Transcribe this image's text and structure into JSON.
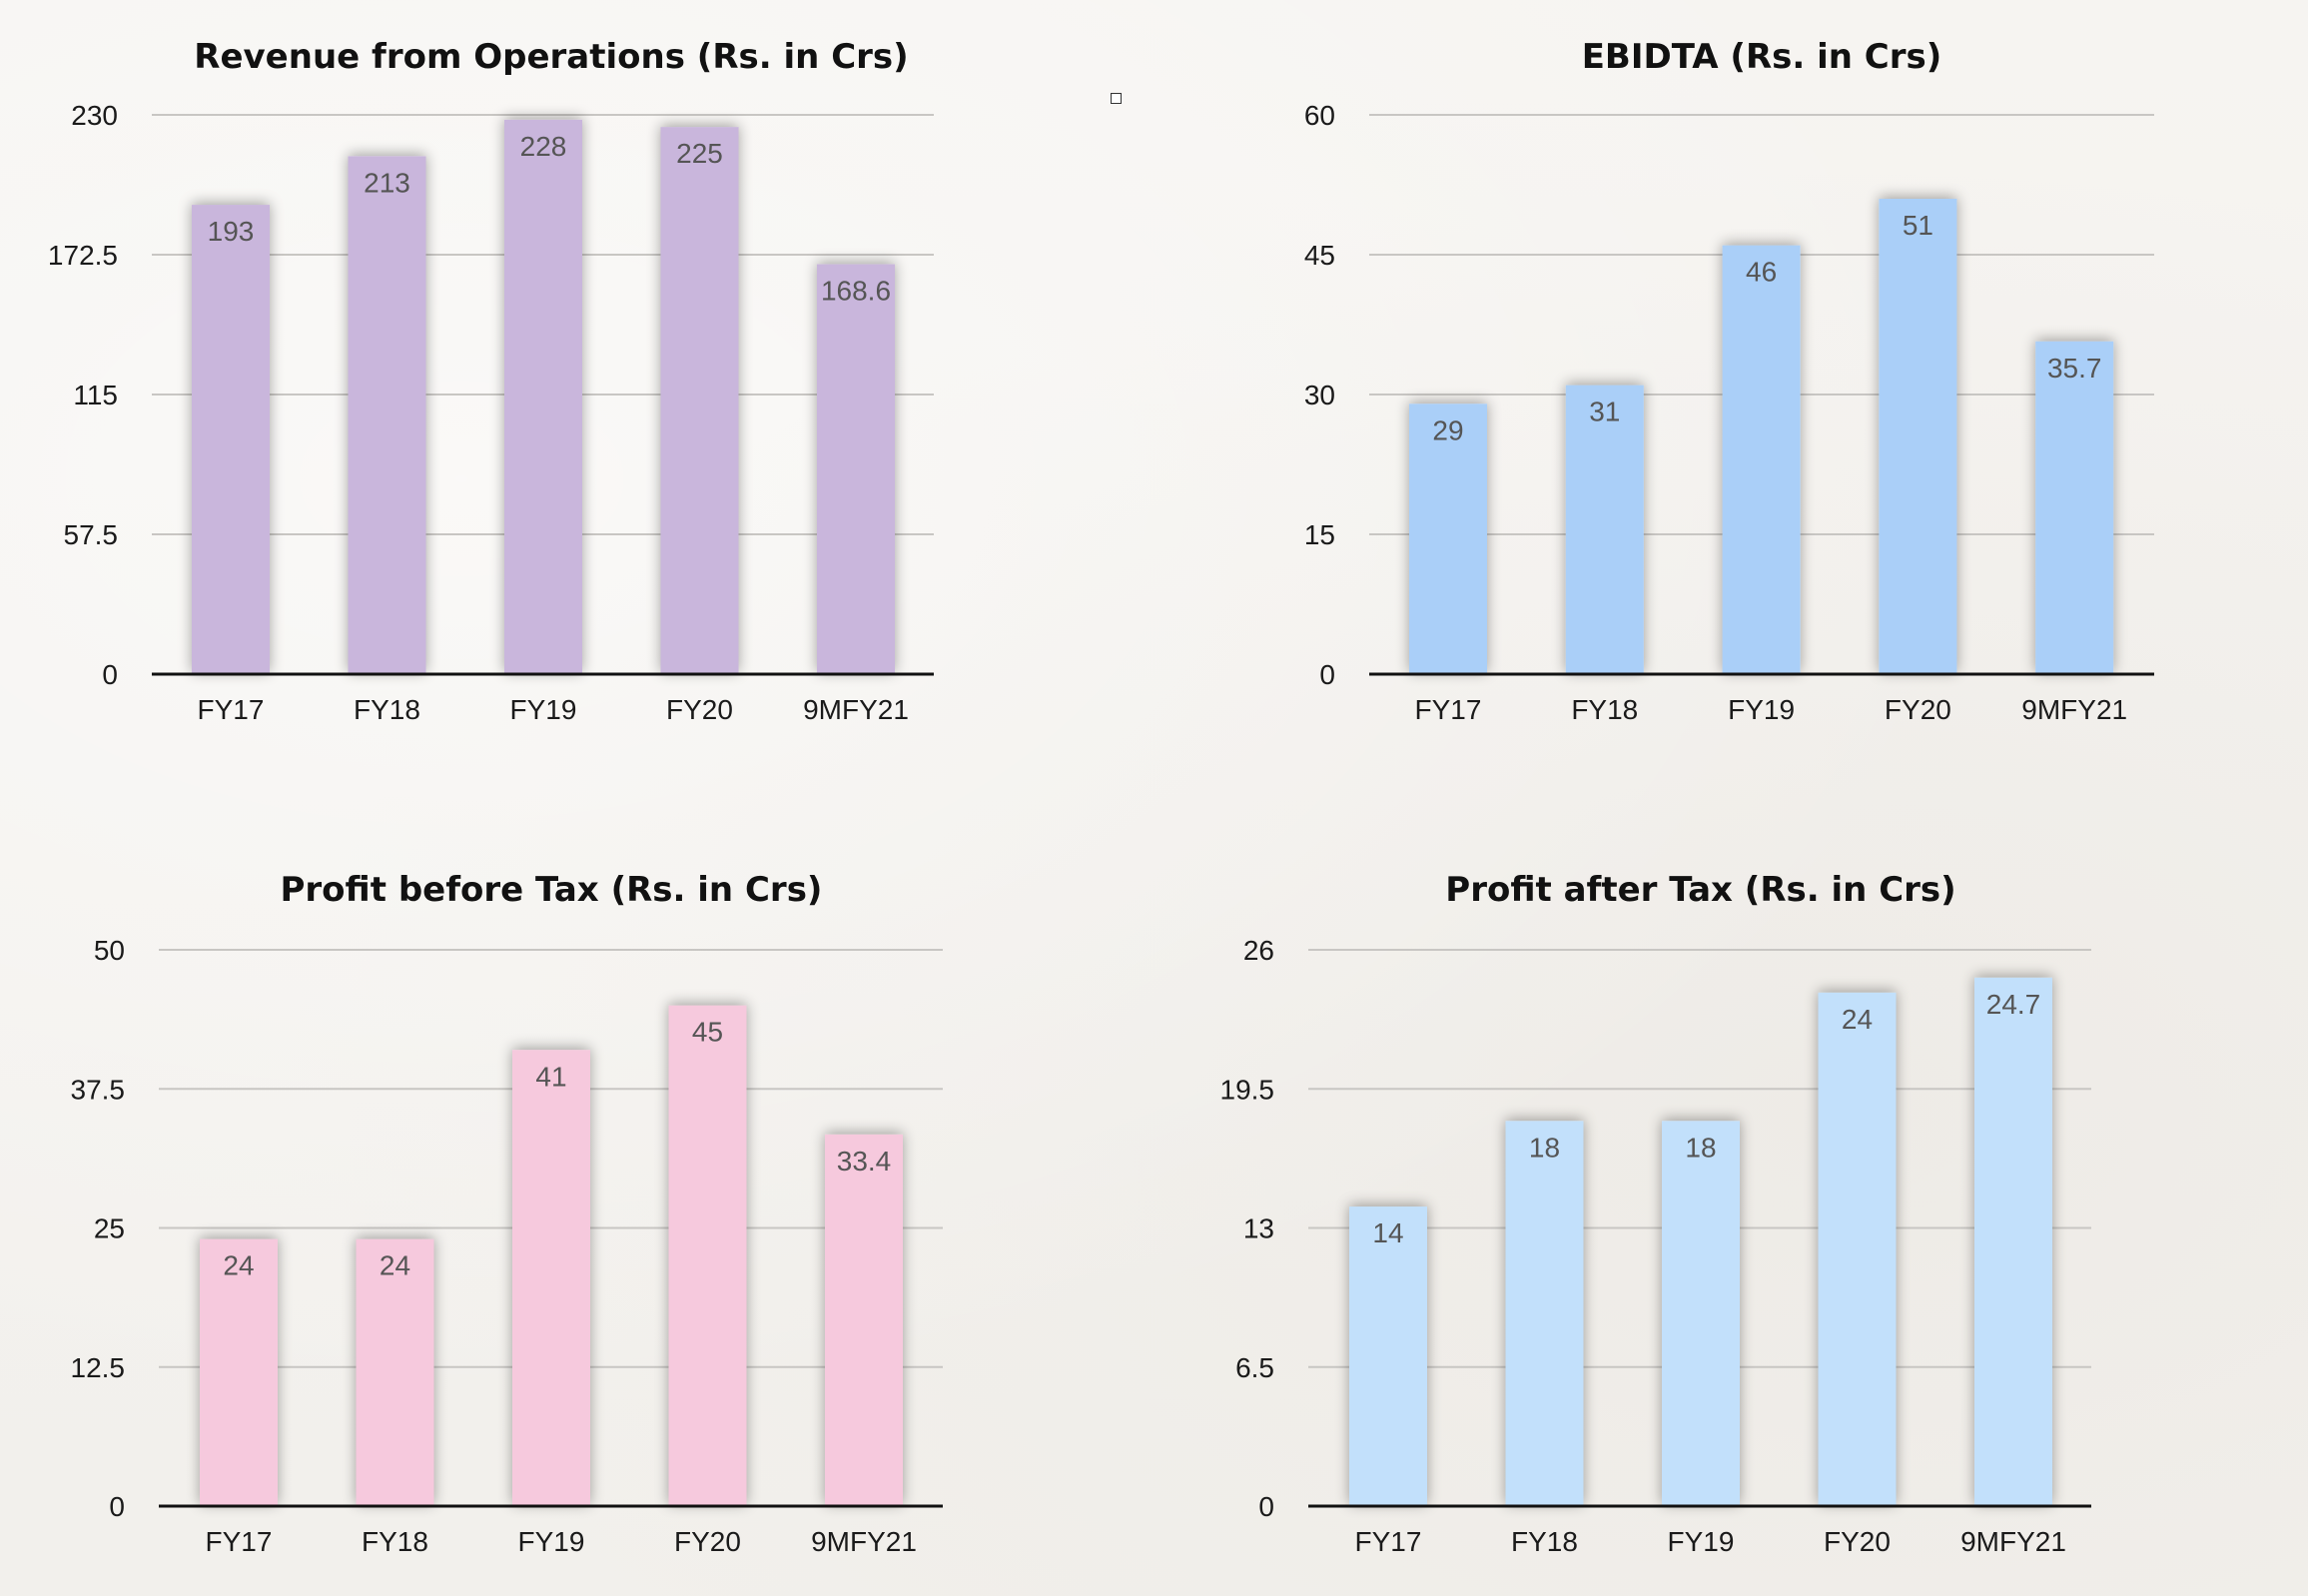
{
  "chart_data": [
    {
      "type": "bar",
      "title": "Revenue from Operations (Rs. in Crs)",
      "categories": [
        "FY17",
        "FY18",
        "FY19",
        "FY20",
        "9MFY21"
      ],
      "values": [
        193,
        213,
        228,
        225,
        168.6
      ],
      "data_labels": [
        "193",
        "213",
        "228",
        "225",
        "168.6"
      ],
      "yticks": [
        0,
        57.5,
        115,
        172.5,
        230
      ],
      "ytick_labels": [
        "0",
        "57.5",
        "115",
        "172.5",
        "230"
      ],
      "ylim": [
        0,
        230
      ],
      "xlabel": "",
      "ylabel": "",
      "grid": true,
      "legend": "none",
      "color": "#c9b6dc"
    },
    {
      "type": "bar",
      "title": "EBIDTA (Rs. in Crs)",
      "categories": [
        "FY17",
        "FY18",
        "FY19",
        "FY20",
        "9MFY21"
      ],
      "values": [
        29,
        31,
        46,
        51,
        35.7
      ],
      "data_labels": [
        "29",
        "31",
        "46",
        "51",
        "35.7"
      ],
      "yticks": [
        0,
        15,
        30,
        45,
        60
      ],
      "ytick_labels": [
        "0",
        "15",
        "30",
        "45",
        "60"
      ],
      "ylim": [
        0,
        60
      ],
      "xlabel": "",
      "ylabel": "",
      "grid": true,
      "legend": "none",
      "color": "#aacff8"
    },
    {
      "type": "bar",
      "title": "Profit before Tax (Rs. in Crs)",
      "categories": [
        "FY17",
        "FY18",
        "FY19",
        "FY20",
        "9MFY21"
      ],
      "values": [
        24,
        24,
        41,
        45,
        33.4
      ],
      "data_labels": [
        "24",
        "24",
        "41",
        "45",
        "33.4"
      ],
      "yticks": [
        0,
        12.5,
        25,
        37.5,
        50
      ],
      "ytick_labels": [
        "0",
        "12.5",
        "25",
        "37.5",
        "50"
      ],
      "ylim": [
        0,
        50
      ],
      "xlabel": "",
      "ylabel": "",
      "grid": true,
      "legend": "none",
      "color": "#f6c9dd"
    },
    {
      "type": "bar",
      "title": "Profit after Tax (Rs. in Crs)",
      "categories": [
        "FY17",
        "FY18",
        "FY19",
        "FY20",
        "9MFY21"
      ],
      "values": [
        14,
        18,
        18,
        24,
        24.7
      ],
      "data_labels": [
        "14",
        "18",
        "18",
        "24",
        "24.7"
      ],
      "yticks": [
        0,
        6.5,
        13,
        19.5,
        26
      ],
      "ytick_labels": [
        "0",
        "6.5",
        "13",
        "19.5",
        "26"
      ],
      "ylim": [
        0,
        26
      ],
      "xlabel": "",
      "ylabel": "",
      "grid": true,
      "legend": "none",
      "color": "#c2e0fb"
    }
  ]
}
